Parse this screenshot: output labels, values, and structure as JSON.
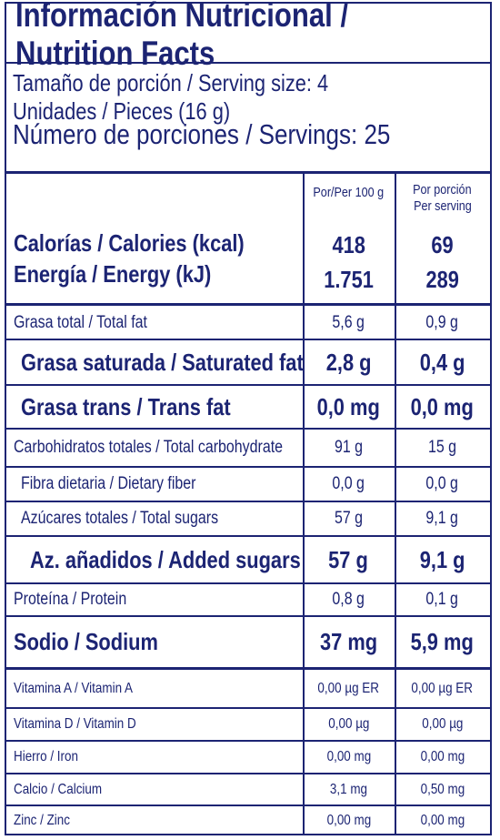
{
  "header": {
    "title": "Información Nutricional / Nutrition Facts"
  },
  "serving": {
    "size": "Tamaño de porción / Serving size: 4 Unidades / Pieces (16 g)",
    "servings": "Número de porciones / Servings: 25"
  },
  "table": {
    "per_100g": "Por/Per 100 g",
    "per_serving": [
      "Por porción",
      "Per serving"
    ],
    "energy_rows": [
      [
        "Calorías / Calories (kcal)",
        "418",
        "69"
      ],
      [
        "Energía / Energy (kJ)",
        "1.751",
        "289"
      ]
    ],
    "rows": [
      [
        "Grasa total / Total fat",
        "5,6 g",
        "0,9 g"
      ],
      [
        "Grasa saturada / Saturated fat",
        "2,8 g",
        "0,4 g"
      ],
      [
        "Grasa trans / Trans fat",
        "0,0 mg",
        "0,0 mg"
      ],
      [
        "Carbohidratos totales / Total carbohydrate",
        "91 g",
        "15 g"
      ],
      [
        "Fibra dietaria / Dietary fiber",
        "0,0 g",
        "0,0 g"
      ],
      [
        "Azúcares totales / Total sugars",
        "57 g",
        "9,1 g"
      ],
      [
        "Az. añadidos / Added sugars",
        "57 g",
        "9,1 g"
      ],
      [
        "Proteína / Protein",
        "0,8 g",
        "0,1 g"
      ],
      [
        "Sodio / Sodium",
        "37 mg",
        "5,9 mg"
      ]
    ],
    "vitamin_rows": [
      [
        "Vitamina A / Vitamin A",
        "0,00 µg ER",
        "0,00 µg ER"
      ],
      [
        "Vitamina D / Vitamin D",
        "0,00 µg",
        "0,00 µg"
      ],
      [
        "Hierro / Iron",
        "0,00 mg",
        "0,00 mg"
      ],
      [
        "Calcio / Calcium",
        "3,1 mg",
        "0,50 mg"
      ],
      [
        "Zinc / Zinc",
        "0,00 mg",
        "0,00 mg"
      ]
    ]
  }
}
